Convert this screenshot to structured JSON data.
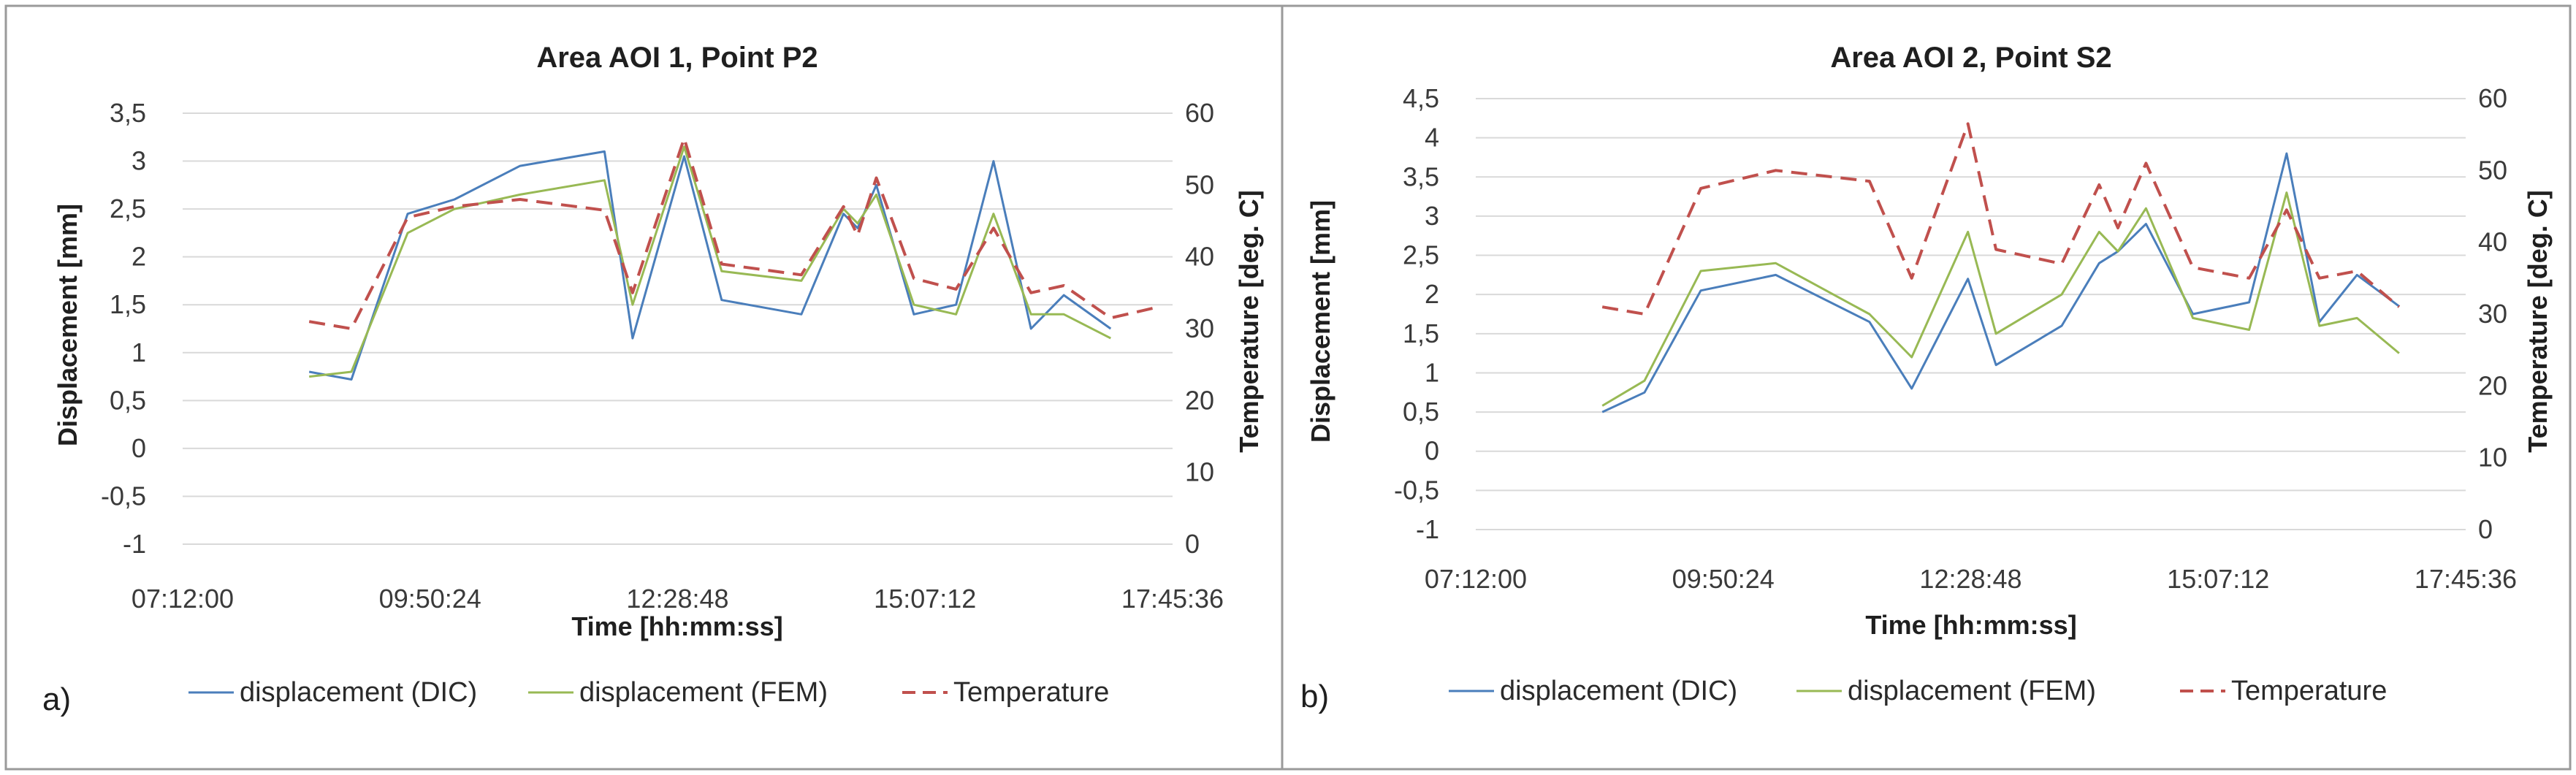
{
  "chart_data": [
    {
      "type": "line",
      "panel_label": "a)",
      "title": "Area AOI 1, Point P2",
      "xlabel": "Time [hh:mm:ss]",
      "ylabel": "Displacement [mm]",
      "y2label": "Temperature [deg. C]",
      "xlim_hours": [
        7.2,
        17.76
      ],
      "x_ticks_hours": [
        7.2,
        9.84,
        12.48,
        15.12,
        17.76
      ],
      "x_tick_labels": [
        "07:12:00",
        "09:50:24",
        "12:28:48",
        "15:07:12",
        "17:45:36"
      ],
      "ylim": [
        -1,
        3.5
      ],
      "y_ticks": [
        -1,
        -0.5,
        0,
        0.5,
        1,
        1.5,
        2,
        2.5,
        3,
        3.5
      ],
      "y_tick_labels": [
        "-1",
        "-0,5",
        "0",
        "0,5",
        "1",
        "1,5",
        "2",
        "2,5",
        "3",
        "3,5"
      ],
      "y2lim": [
        0,
        60
      ],
      "y2_ticks": [
        0,
        10,
        20,
        30,
        40,
        50,
        60
      ],
      "y2_tick_labels": [
        "0",
        "10",
        "20",
        "30",
        "40",
        "50",
        "60"
      ],
      "gridlines": "horizontal",
      "legend_position": "bottom",
      "series": [
        {
          "name": "displacement (DIC)",
          "axis": "left",
          "color": "#4a7ebb",
          "dash": "solid",
          "x": [
            8.55,
            9.0,
            9.6,
            10.1,
            10.8,
            11.7,
            12.0,
            12.55,
            12.95,
            13.8,
            14.25,
            14.4,
            14.6,
            15.0,
            15.45,
            15.85,
            16.25,
            16.6,
            17.1
          ],
          "y": [
            0.8,
            0.72,
            2.45,
            2.6,
            2.95,
            3.1,
            1.15,
            3.05,
            1.55,
            1.4,
            2.45,
            2.3,
            2.75,
            1.4,
            1.5,
            3.0,
            1.25,
            1.6,
            1.25
          ]
        },
        {
          "name": "displacement (FEM)",
          "axis": "left",
          "color": "#98b954",
          "dash": "solid",
          "x": [
            8.55,
            9.0,
            9.6,
            10.1,
            10.8,
            11.7,
            12.0,
            12.55,
            12.95,
            13.8,
            14.25,
            14.4,
            14.6,
            15.0,
            15.45,
            15.85,
            16.25,
            16.6,
            17.1
          ],
          "y": [
            0.75,
            0.8,
            2.25,
            2.5,
            2.65,
            2.8,
            1.5,
            3.15,
            1.85,
            1.75,
            2.5,
            2.35,
            2.65,
            1.5,
            1.4,
            2.45,
            1.4,
            1.4,
            1.15
          ]
        },
        {
          "name": "Temperature",
          "axis": "right",
          "color": "#c0504d",
          "dash": "dashed",
          "x": [
            8.55,
            9.0,
            9.6,
            10.1,
            10.8,
            11.7,
            12.0,
            12.55,
            12.95,
            13.8,
            14.25,
            14.4,
            14.6,
            15.0,
            15.45,
            15.85,
            16.25,
            16.6,
            17.1,
            17.6
          ],
          "y": [
            31,
            30,
            45.5,
            47,
            48,
            46.5,
            35,
            56.5,
            39,
            37.5,
            47,
            43,
            51,
            37,
            35.5,
            44,
            35,
            36,
            31.5,
            33
          ]
        }
      ]
    },
    {
      "type": "line",
      "panel_label": "b)",
      "title": "Area AOI 2, Point S2",
      "xlabel": "Time [hh:mm:ss]",
      "ylabel": "Displacement [mm]",
      "y2label": "Temperature [deg. C]",
      "xlim_hours": [
        7.2,
        17.76
      ],
      "x_ticks_hours": [
        7.2,
        9.84,
        12.48,
        15.12,
        17.76
      ],
      "x_tick_labels": [
        "07:12:00",
        "09:50:24",
        "12:28:48",
        "15:07:12",
        "17:45:36"
      ],
      "ylim": [
        -1,
        4.5
      ],
      "y_ticks": [
        -1,
        -0.5,
        0,
        0.5,
        1,
        1.5,
        2,
        2.5,
        3,
        3.5,
        4,
        4.5
      ],
      "y_tick_labels": [
        "-1",
        "-0,5",
        "0",
        "0,5",
        "1",
        "1,5",
        "2",
        "2,5",
        "3",
        "3,5",
        "4",
        "4,5"
      ],
      "y2lim": [
        0,
        60
      ],
      "y2_ticks": [
        0,
        10,
        20,
        30,
        40,
        50,
        60
      ],
      "y2_tick_labels": [
        "0",
        "10",
        "20",
        "30",
        "40",
        "50",
        "60"
      ],
      "gridlines": "horizontal",
      "legend_position": "bottom",
      "series": [
        {
          "name": "displacement (DIC)",
          "axis": "left",
          "color": "#4a7ebb",
          "dash": "solid",
          "x": [
            8.55,
            9.0,
            9.6,
            10.4,
            11.4,
            11.85,
            12.45,
            12.75,
            13.45,
            13.85,
            14.05,
            14.35,
            14.85,
            15.45,
            15.85,
            16.2,
            16.6,
            17.05
          ],
          "y": [
            0.5,
            0.75,
            2.05,
            2.25,
            1.65,
            0.8,
            2.2,
            1.1,
            1.6,
            2.4,
            2.55,
            2.9,
            1.75,
            1.9,
            3.8,
            1.65,
            2.25,
            1.85
          ]
        },
        {
          "name": "displacement (FEM)",
          "axis": "left",
          "color": "#98b954",
          "dash": "solid",
          "x": [
            8.55,
            9.0,
            9.6,
            10.4,
            11.4,
            11.85,
            12.45,
            12.75,
            13.45,
            13.85,
            14.05,
            14.35,
            14.85,
            15.45,
            15.85,
            16.2,
            16.6,
            17.05
          ],
          "y": [
            0.58,
            0.9,
            2.3,
            2.4,
            1.75,
            1.2,
            2.8,
            1.5,
            2.0,
            2.8,
            2.55,
            3.1,
            1.7,
            1.55,
            3.3,
            1.6,
            1.7,
            1.25
          ]
        },
        {
          "name": "Temperature",
          "axis": "right",
          "color": "#c0504d",
          "dash": "dashed",
          "x": [
            8.55,
            9.0,
            9.6,
            10.4,
            11.4,
            11.85,
            12.45,
            12.75,
            13.45,
            13.85,
            14.05,
            14.35,
            14.85,
            15.45,
            15.85,
            16.2,
            16.6,
            17.05
          ],
          "y": [
            31,
            30,
            47.5,
            50,
            48.5,
            35,
            56.5,
            39,
            37,
            48,
            42,
            51,
            36.5,
            35,
            44.5,
            35,
            36,
            31
          ]
        }
      ]
    }
  ]
}
